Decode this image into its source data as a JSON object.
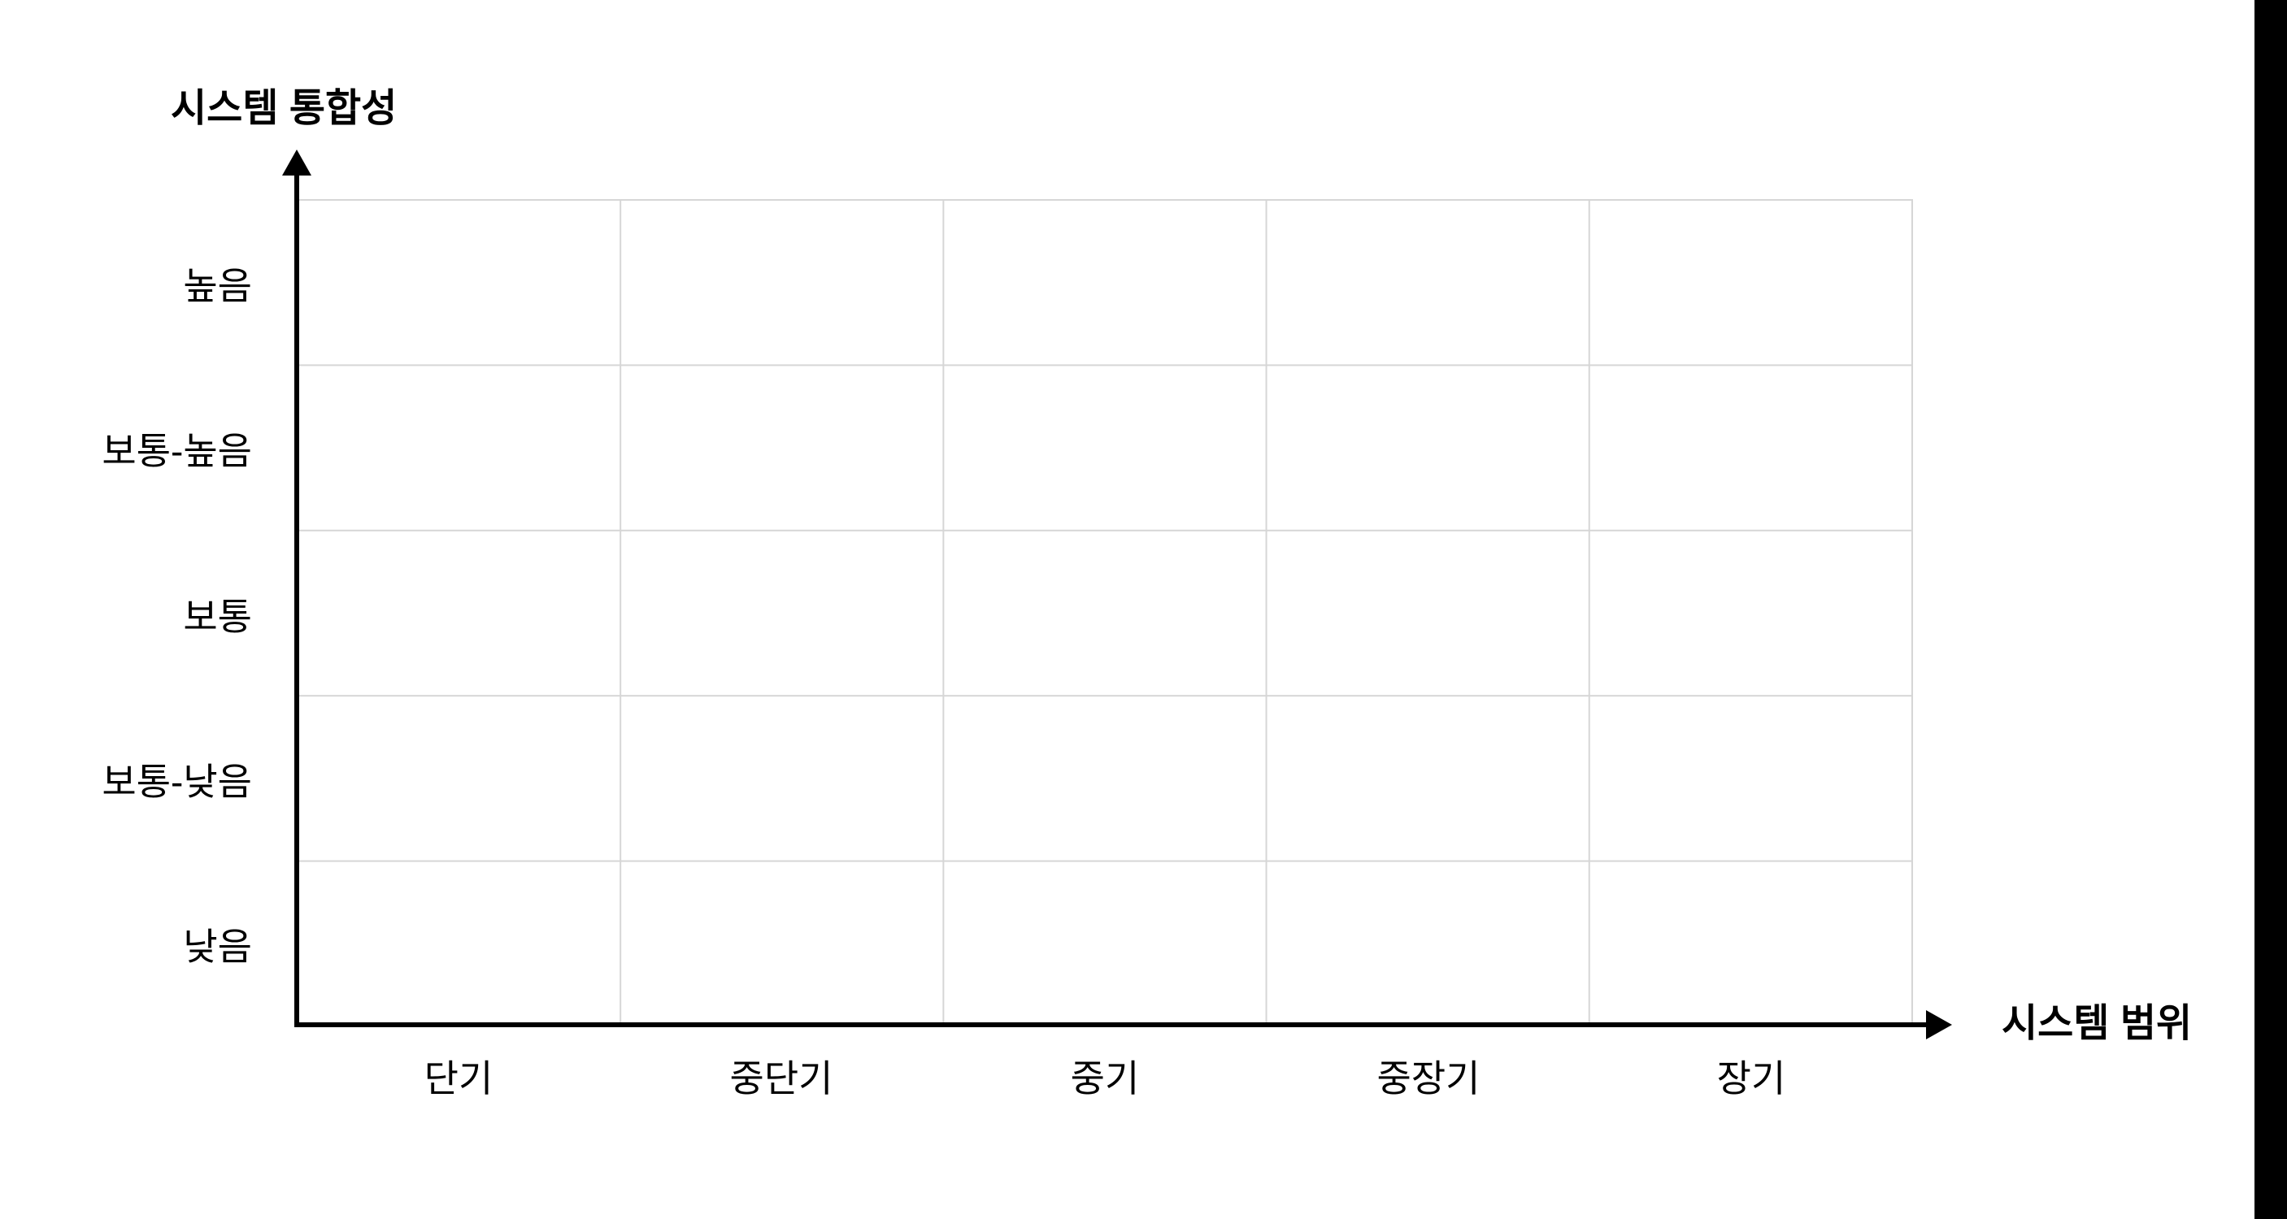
{
  "chart": {
    "y_axis": {
      "title": "시스템 통합성",
      "labels": [
        "높음",
        "보통-높음",
        "보통",
        "보통-낮음",
        "낮음"
      ]
    },
    "x_axis": {
      "title": "시스템 범위",
      "labels": [
        "단기",
        "중단기",
        "중기",
        "중장기",
        "장기"
      ]
    },
    "colors": {
      "background": "#ffffff",
      "gridline": "#d6d6d6",
      "axis": "#000000",
      "text": "#000000",
      "right_bar": "#000000"
    }
  },
  "chart_data": {
    "type": "scatter",
    "title": "",
    "xlabel": "시스템 범위",
    "ylabel": "시스템 통합성",
    "x_categories": [
      "단기",
      "중단기",
      "중기",
      "중장기",
      "장기"
    ],
    "y_categories": [
      "낮음",
      "보통-낮음",
      "보통",
      "보통-높음",
      "높음"
    ],
    "series": [],
    "grid": "on",
    "grid_shape": "5x5",
    "legend_position": "none"
  }
}
